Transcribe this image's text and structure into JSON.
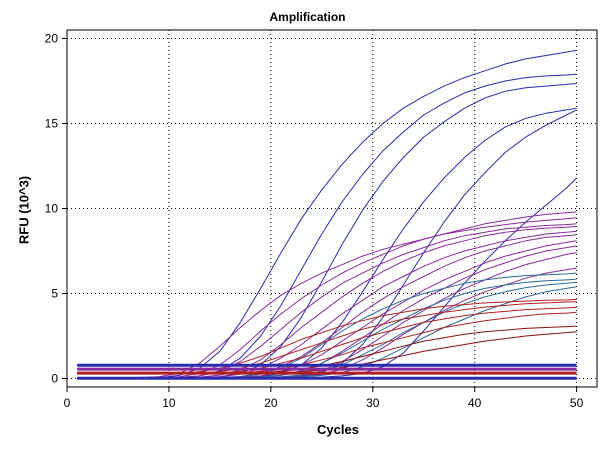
{
  "chart_data": {
    "type": "line",
    "title": "Amplification",
    "xlabel": "Cycles",
    "ylabel": "RFU (10^3)",
    "xlim": [
      0,
      52
    ],
    "ylim": [
      -0.5,
      20.5
    ],
    "xticks": [
      0,
      10,
      20,
      30,
      40,
      50
    ],
    "yticks": [
      0,
      5,
      10,
      15,
      20
    ],
    "grid": true,
    "grid_style": "dotted",
    "x": [
      1,
      3,
      5,
      7,
      9,
      11,
      13,
      15,
      17,
      19,
      21,
      23,
      25,
      27,
      29,
      31,
      33,
      35,
      37,
      39,
      41,
      43,
      45,
      47,
      49,
      50
    ],
    "colors": {
      "blue": "#2b2bb0",
      "purple": "#8a2a9a",
      "red": "#b02020",
      "teal": "#2a6a9a",
      "darkred": "#8a1010"
    },
    "series": [
      {
        "color": "blue",
        "values": [
          0.02,
          0.02,
          0.02,
          0.03,
          0.05,
          0.18,
          0.6,
          1.6,
          3.3,
          5.3,
          7.4,
          9.4,
          11.1,
          12.6,
          13.9,
          15.0,
          15.9,
          16.6,
          17.2,
          17.7,
          18.1,
          18.5,
          18.8,
          19.0,
          19.2,
          19.3
        ]
      },
      {
        "color": "blue",
        "values": [
          0.02,
          0.02,
          0.02,
          0.02,
          0.03,
          0.06,
          0.15,
          0.45,
          1.2,
          2.5,
          4.3,
          6.4,
          8.5,
          10.4,
          12.0,
          13.4,
          14.5,
          15.5,
          16.2,
          16.8,
          17.2,
          17.5,
          17.7,
          17.8,
          17.85,
          17.9
        ]
      },
      {
        "color": "blue",
        "values": [
          0.02,
          0.02,
          0.02,
          0.02,
          0.02,
          0.03,
          0.05,
          0.1,
          0.3,
          0.8,
          1.9,
          3.6,
          5.7,
          7.9,
          9.9,
          11.6,
          13.0,
          14.2,
          15.1,
          15.9,
          16.5,
          16.9,
          17.1,
          17.2,
          17.3,
          17.35
        ]
      },
      {
        "color": "blue",
        "values": [
          0.02,
          0.02,
          0.02,
          0.02,
          0.02,
          0.02,
          0.03,
          0.04,
          0.06,
          0.12,
          0.3,
          0.8,
          1.8,
          3.3,
          5.1,
          7.0,
          8.8,
          10.4,
          11.8,
          13.0,
          14.0,
          14.8,
          15.3,
          15.6,
          15.8,
          15.9
        ]
      },
      {
        "color": "blue",
        "values": [
          0.02,
          0.02,
          0.02,
          0.02,
          0.02,
          0.02,
          0.02,
          0.03,
          0.04,
          0.05,
          0.08,
          0.15,
          0.35,
          0.9,
          2.0,
          3.6,
          5.5,
          7.4,
          9.2,
          10.8,
          12.1,
          13.3,
          14.2,
          14.9,
          15.5,
          15.8
        ]
      },
      {
        "color": "blue",
        "values": [
          0.02,
          0.02,
          0.02,
          0.02,
          0.02,
          0.02,
          0.02,
          0.02,
          0.02,
          0.03,
          0.04,
          0.05,
          0.08,
          0.15,
          0.3,
          0.7,
          1.5,
          2.8,
          4.2,
          5.6,
          6.9,
          8.1,
          9.2,
          10.2,
          11.2,
          11.8
        ]
      },
      {
        "color": "purple",
        "values": [
          0.05,
          0.05,
          0.05,
          0.06,
          0.1,
          0.3,
          0.9,
          1.9,
          3.0,
          4.0,
          4.9,
          5.6,
          6.2,
          6.7,
          7.2,
          7.6,
          7.9,
          8.2,
          8.5,
          8.7,
          8.9,
          9.05,
          9.2,
          9.3,
          9.4,
          9.45
        ]
      },
      {
        "color": "purple",
        "values": [
          0.05,
          0.05,
          0.05,
          0.05,
          0.06,
          0.1,
          0.3,
          0.8,
          1.7,
          2.8,
          3.8,
          4.7,
          5.5,
          6.2,
          6.8,
          7.3,
          7.8,
          8.2,
          8.5,
          8.8,
          9.1,
          9.3,
          9.5,
          9.65,
          9.75,
          9.8
        ]
      },
      {
        "color": "purple",
        "values": [
          0.05,
          0.05,
          0.05,
          0.05,
          0.05,
          0.07,
          0.15,
          0.4,
          1.0,
          1.9,
          2.9,
          3.9,
          4.8,
          5.6,
          6.2,
          6.8,
          7.3,
          7.7,
          8.1,
          8.4,
          8.6,
          8.8,
          8.9,
          9.0,
          9.05,
          9.1
        ]
      },
      {
        "color": "purple",
        "values": [
          0.05,
          0.05,
          0.05,
          0.05,
          0.05,
          0.05,
          0.08,
          0.2,
          0.5,
          1.1,
          2.0,
          3.0,
          3.9,
          4.8,
          5.6,
          6.3,
          6.9,
          7.4,
          7.8,
          8.1,
          8.4,
          8.6,
          8.75,
          8.85,
          8.9,
          8.95
        ]
      },
      {
        "color": "purple",
        "values": [
          0.05,
          0.05,
          0.05,
          0.05,
          0.05,
          0.05,
          0.06,
          0.1,
          0.25,
          0.6,
          1.2,
          2.0,
          2.9,
          3.8,
          4.6,
          5.4,
          6.0,
          6.6,
          7.1,
          7.5,
          7.8,
          8.1,
          8.3,
          8.5,
          8.6,
          8.65
        ]
      },
      {
        "color": "purple",
        "values": [
          0.05,
          0.05,
          0.05,
          0.05,
          0.05,
          0.05,
          0.05,
          0.07,
          0.12,
          0.3,
          0.7,
          1.3,
          2.1,
          3.0,
          3.9,
          4.7,
          5.4,
          6.0,
          6.6,
          7.1,
          7.5,
          7.8,
          8.1,
          8.3,
          8.4,
          8.45
        ]
      },
      {
        "color": "purple",
        "values": [
          0.05,
          0.05,
          0.05,
          0.05,
          0.05,
          0.05,
          0.05,
          0.05,
          0.08,
          0.15,
          0.35,
          0.8,
          1.4,
          2.2,
          3.0,
          3.8,
          4.5,
          5.2,
          5.8,
          6.3,
          6.8,
          7.2,
          7.5,
          7.8,
          8.0,
          8.1
        ]
      },
      {
        "color": "purple",
        "values": [
          0.05,
          0.05,
          0.05,
          0.05,
          0.05,
          0.05,
          0.05,
          0.05,
          0.06,
          0.09,
          0.18,
          0.4,
          0.9,
          1.6,
          2.4,
          3.2,
          4.0,
          4.7,
          5.3,
          5.9,
          6.4,
          6.8,
          7.2,
          7.5,
          7.7,
          7.8
        ]
      },
      {
        "color": "purple",
        "values": [
          0.05,
          0.05,
          0.05,
          0.05,
          0.05,
          0.05,
          0.05,
          0.05,
          0.05,
          0.06,
          0.1,
          0.2,
          0.45,
          1.0,
          1.7,
          2.5,
          3.3,
          4.0,
          4.7,
          5.3,
          5.8,
          6.3,
          6.7,
          7.0,
          7.3,
          7.4
        ]
      },
      {
        "color": "purple",
        "values": [
          0.05,
          0.05,
          0.05,
          0.05,
          0.05,
          0.05,
          0.05,
          0.05,
          0.05,
          0.05,
          0.07,
          0.12,
          0.25,
          0.55,
          1.1,
          1.8,
          2.6,
          3.3,
          4.0,
          4.6,
          5.1,
          5.5,
          5.9,
          6.2,
          6.4,
          6.5
        ]
      },
      {
        "color": "teal",
        "values": [
          0.05,
          0.05,
          0.05,
          0.05,
          0.05,
          0.05,
          0.05,
          0.06,
          0.1,
          0.25,
          0.6,
          1.2,
          2.0,
          2.8,
          3.5,
          4.1,
          4.6,
          5.0,
          5.3,
          5.6,
          5.8,
          5.95,
          6.05,
          6.1,
          6.15,
          6.2
        ]
      },
      {
        "color": "teal",
        "values": [
          0.05,
          0.05,
          0.05,
          0.05,
          0.05,
          0.05,
          0.05,
          0.05,
          0.06,
          0.1,
          0.2,
          0.45,
          0.9,
          1.5,
          2.2,
          2.9,
          3.5,
          4.1,
          4.6,
          5.0,
          5.3,
          5.5,
          5.65,
          5.75,
          5.8,
          5.85
        ]
      },
      {
        "color": "teal",
        "values": [
          0.05,
          0.05,
          0.05,
          0.05,
          0.05,
          0.05,
          0.05,
          0.05,
          0.05,
          0.06,
          0.1,
          0.18,
          0.4,
          0.8,
          1.4,
          2.0,
          2.7,
          3.3,
          3.9,
          4.4,
          4.8,
          5.1,
          5.35,
          5.5,
          5.6,
          5.65
        ]
      },
      {
        "color": "teal",
        "values": [
          0.05,
          0.05,
          0.05,
          0.05,
          0.05,
          0.05,
          0.05,
          0.05,
          0.05,
          0.05,
          0.06,
          0.1,
          0.18,
          0.35,
          0.7,
          1.2,
          1.8,
          2.4,
          3.0,
          3.5,
          4.0,
          4.4,
          4.8,
          5.1,
          5.3,
          5.4
        ]
      },
      {
        "color": "red",
        "values": [
          0.3,
          0.3,
          0.3,
          0.3,
          0.3,
          0.32,
          0.4,
          0.6,
          0.9,
          1.3,
          1.8,
          2.3,
          2.7,
          3.1,
          3.4,
          3.7,
          3.9,
          4.1,
          4.25,
          4.35,
          4.45,
          4.5,
          4.55,
          4.6,
          4.62,
          4.65
        ]
      },
      {
        "color": "red",
        "values": [
          0.3,
          0.3,
          0.3,
          0.3,
          0.3,
          0.3,
          0.32,
          0.4,
          0.6,
          0.9,
          1.3,
          1.7,
          2.1,
          2.5,
          2.9,
          3.2,
          3.5,
          3.7,
          3.9,
          4.05,
          4.2,
          4.3,
          4.4,
          4.45,
          4.5,
          4.52
        ]
      },
      {
        "color": "red",
        "values": [
          0.3,
          0.3,
          0.3,
          0.3,
          0.3,
          0.3,
          0.3,
          0.33,
          0.42,
          0.6,
          0.9,
          1.2,
          1.6,
          2.0,
          2.4,
          2.7,
          3.0,
          3.3,
          3.5,
          3.7,
          3.85,
          3.95,
          4.05,
          4.1,
          4.15,
          4.18
        ]
      },
      {
        "color": "red",
        "values": [
          0.3,
          0.3,
          0.3,
          0.3,
          0.3,
          0.3,
          0.3,
          0.3,
          0.34,
          0.42,
          0.58,
          0.8,
          1.1,
          1.4,
          1.8,
          2.1,
          2.4,
          2.7,
          3.0,
          3.2,
          3.4,
          3.55,
          3.7,
          3.8,
          3.85,
          3.9
        ]
      },
      {
        "color": "darkred",
        "values": [
          0.3,
          0.3,
          0.3,
          0.3,
          0.3,
          0.3,
          0.3,
          0.3,
          0.31,
          0.35,
          0.42,
          0.55,
          0.75,
          1.0,
          1.3,
          1.6,
          1.9,
          2.2,
          2.4,
          2.6,
          2.75,
          2.85,
          2.95,
          3.0,
          3.05,
          3.08
        ]
      },
      {
        "color": "darkred",
        "values": [
          0.3,
          0.3,
          0.3,
          0.3,
          0.3,
          0.3,
          0.3,
          0.3,
          0.3,
          0.31,
          0.34,
          0.4,
          0.5,
          0.65,
          0.85,
          1.1,
          1.35,
          1.6,
          1.8,
          2.0,
          2.2,
          2.35,
          2.5,
          2.6,
          2.7,
          2.75
        ]
      },
      {
        "color": "blue",
        "values": [
          0.78,
          0.78,
          0.78,
          0.78,
          0.78,
          0.78,
          0.78,
          0.78,
          0.78,
          0.78,
          0.78,
          0.78,
          0.78,
          0.78,
          0.78,
          0.78,
          0.78,
          0.78,
          0.78,
          0.78,
          0.78,
          0.78,
          0.78,
          0.78,
          0.78,
          0.78
        ]
      },
      {
        "color": "purple",
        "values": [
          0.55,
          0.55,
          0.55,
          0.55,
          0.55,
          0.55,
          0.55,
          0.55,
          0.55,
          0.55,
          0.55,
          0.55,
          0.55,
          0.55,
          0.55,
          0.55,
          0.55,
          0.55,
          0.55,
          0.55,
          0.55,
          0.55,
          0.55,
          0.55,
          0.55,
          0.55
        ]
      },
      {
        "color": "red",
        "values": [
          0.32,
          0.32,
          0.32,
          0.32,
          0.32,
          0.32,
          0.32,
          0.32,
          0.32,
          0.32,
          0.32,
          0.32,
          0.32,
          0.32,
          0.32,
          0.32,
          0.32,
          0.32,
          0.32,
          0.32,
          0.32,
          0.32,
          0.32,
          0.32,
          0.32,
          0.32
        ]
      },
      {
        "color": "blue",
        "values": [
          0.02,
          0.02,
          0.02,
          0.02,
          0.02,
          0.02,
          0.02,
          0.02,
          0.02,
          0.02,
          0.02,
          0.02,
          0.02,
          0.02,
          0.02,
          0.02,
          0.02,
          0.02,
          0.02,
          0.02,
          0.02,
          0.02,
          0.02,
          0.02,
          0.02,
          0.02
        ]
      }
    ]
  }
}
